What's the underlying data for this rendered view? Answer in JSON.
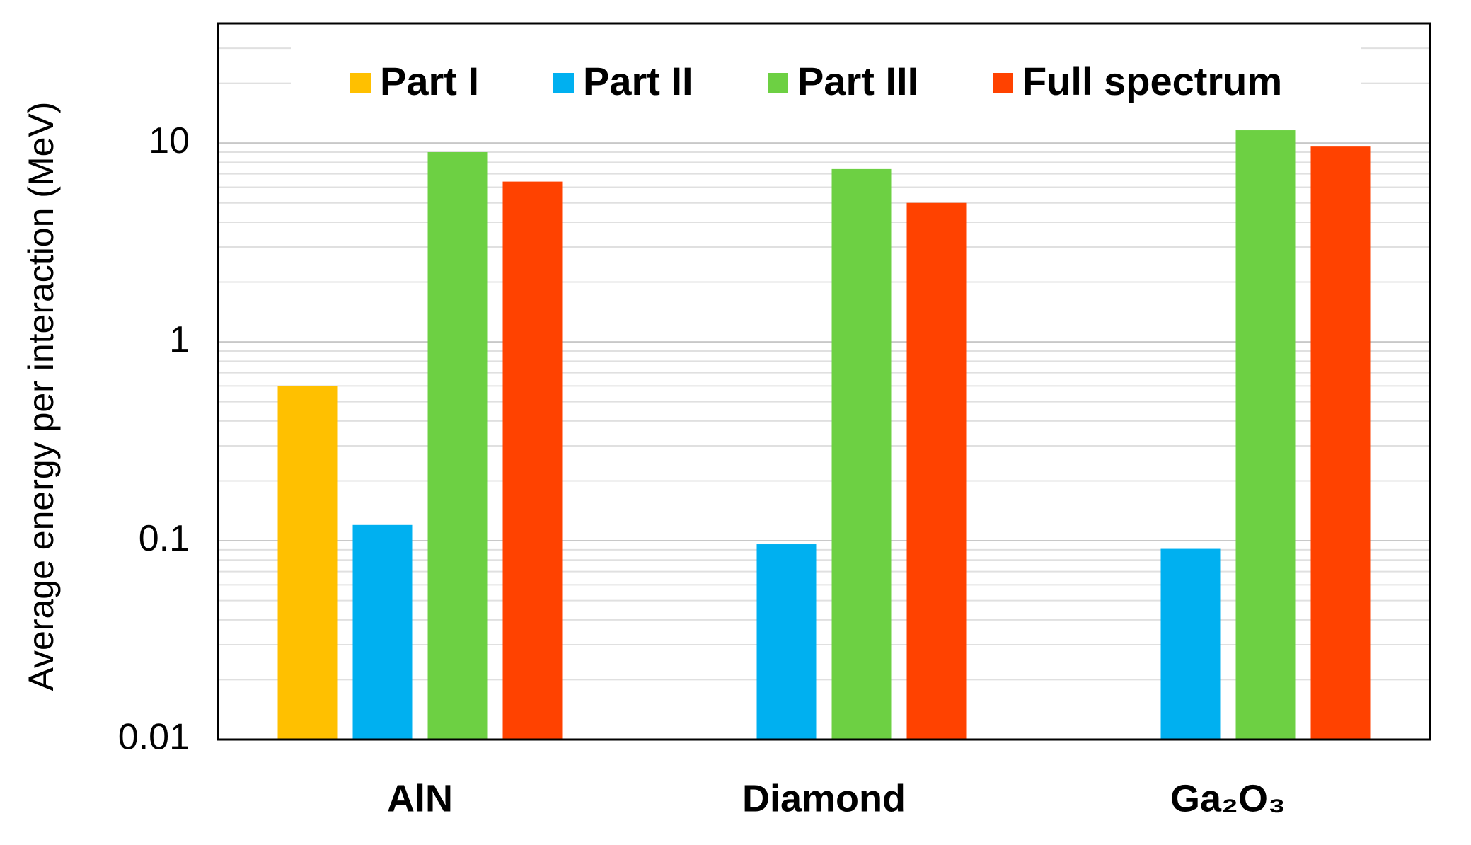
{
  "chart_data": {
    "type": "bar",
    "y_label": "Average energy per interaction (MeV)",
    "categories": [
      "AlN",
      "Diamond",
      "Ga₂O₃"
    ],
    "series": [
      {
        "name": "Part I",
        "color": "#ffc000",
        "values": [
          0.6,
          null,
          null
        ]
      },
      {
        "name": "Part II",
        "color": "#00b0f0",
        "values": [
          0.12,
          0.096,
          0.091
        ]
      },
      {
        "name": "Part III",
        "color": "#6dd043",
        "values": [
          9,
          7.4,
          11.6
        ]
      },
      {
        "name": "Full spectrum",
        "color": "#ff4200",
        "values": [
          6.4,
          5.0,
          9.6
        ]
      }
    ],
    "ylim": [
      0.01,
      40
    ],
    "yticks": [
      0.01,
      0.1,
      1,
      10
    ],
    "log_scale": true,
    "grid": true,
    "minor_grid": true,
    "legend": "top"
  }
}
